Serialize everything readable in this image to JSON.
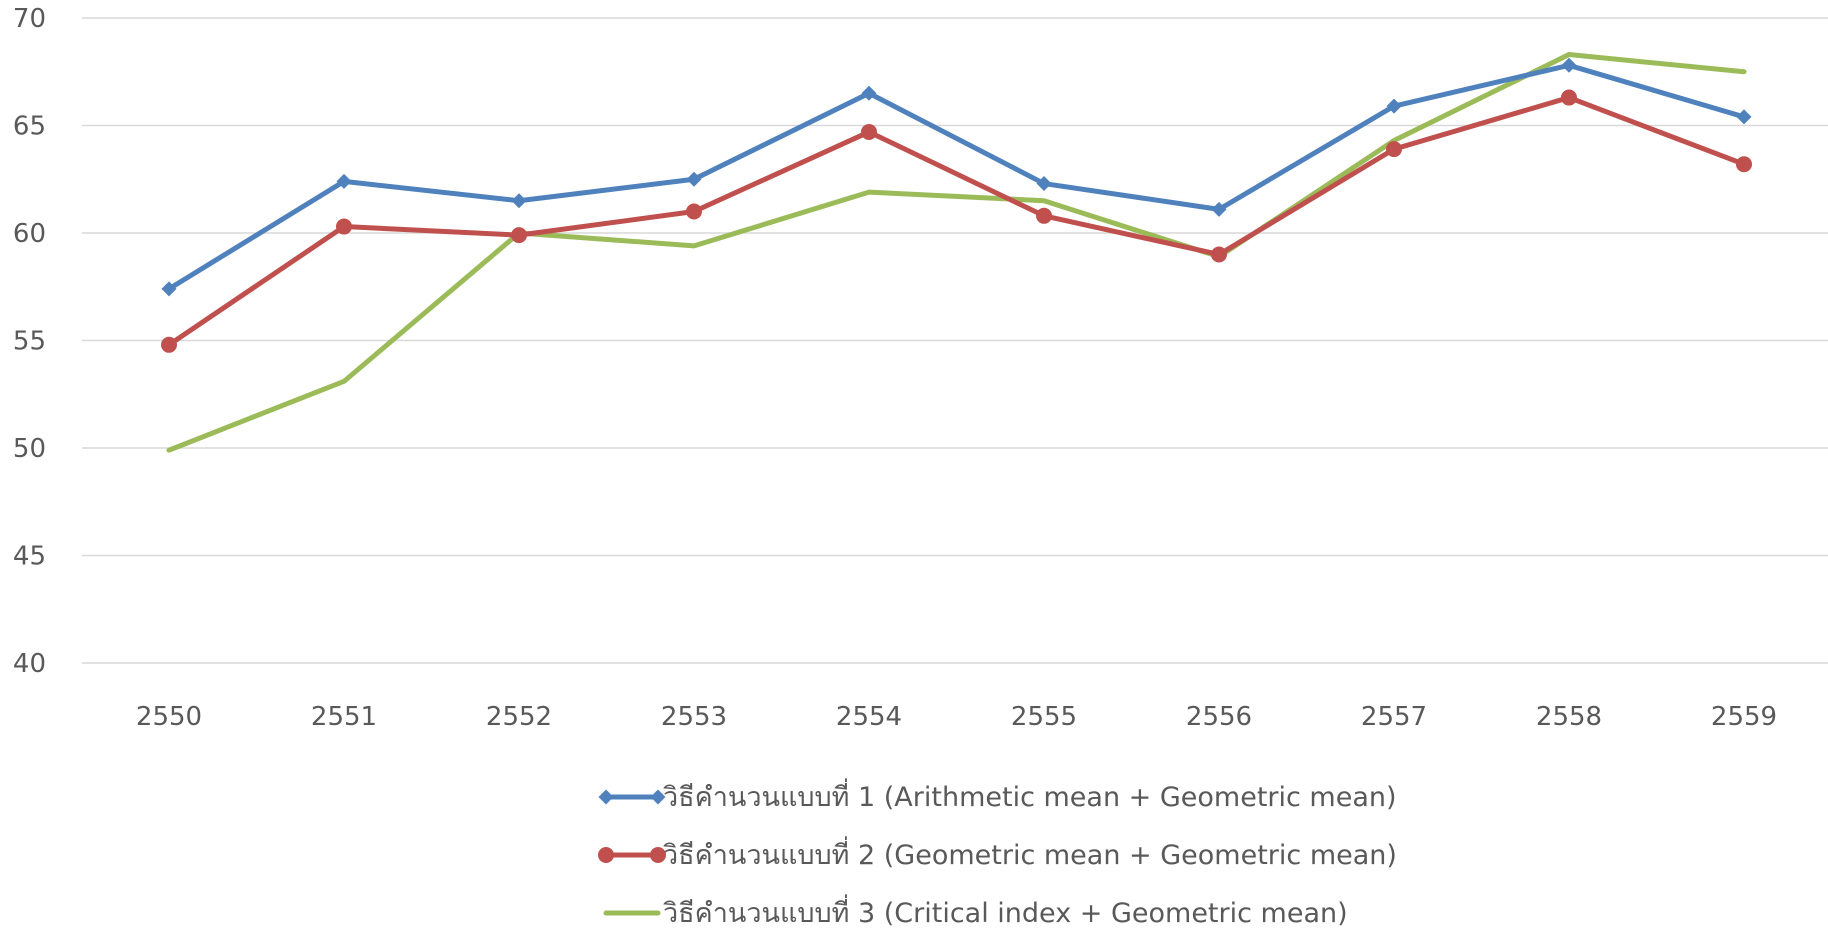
{
  "chart_data": {
    "type": "line",
    "title": "",
    "xlabel": "",
    "ylabel": "",
    "categories": [
      "2550",
      "2551",
      "2552",
      "2553",
      "2554",
      "2555",
      "2556",
      "2557",
      "2558",
      "2559"
    ],
    "ylim": [
      40,
      70
    ],
    "yticks": [
      40,
      45,
      50,
      55,
      60,
      65,
      70
    ],
    "grid": "horizontal",
    "legend_position": "bottom",
    "series": [
      {
        "name": "วิธีคำนวนแบบที่ 1 (Arithmetic mean + Geometric mean)",
        "color": "#4f81bd",
        "marker": "diamond",
        "values": [
          57.4,
          62.4,
          61.5,
          62.5,
          66.5,
          62.3,
          61.1,
          65.9,
          67.8,
          65.4
        ]
      },
      {
        "name": "วิธีคำนวนแบบที่ 2 (Geometric mean + Geometric mean)",
        "color": "#c0504d",
        "marker": "circle",
        "values": [
          54.8,
          60.3,
          59.9,
          61.0,
          64.7,
          60.8,
          59.0,
          63.9,
          66.3,
          63.2
        ]
      },
      {
        "name": "วิธีคำนวนแบบที่ 3 (Critical index + Geometric mean)",
        "color": "#9bbb59",
        "marker": "none",
        "values": [
          49.9,
          53.1,
          60.0,
          59.4,
          61.9,
          61.5,
          58.9,
          64.3,
          68.3,
          67.5
        ]
      }
    ]
  }
}
